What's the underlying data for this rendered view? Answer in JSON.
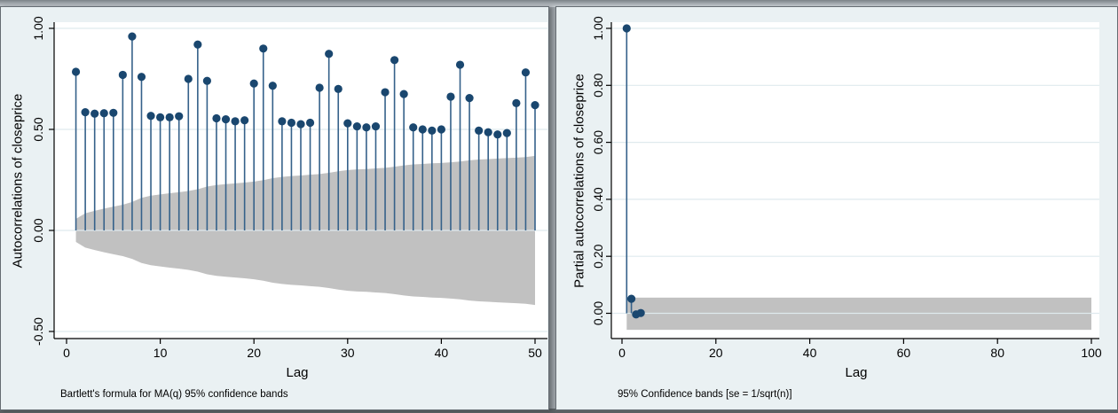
{
  "colors": {
    "panel_bg": "#eaf1f3",
    "plot_bg": "#ffffff",
    "grid": "#dfeaee",
    "axis": "#000000",
    "stem": "#35618a",
    "marker": "#1a476f",
    "band": "#c1c1c1",
    "window_border": "#656c72"
  },
  "chart_data": [
    {
      "type": "stem",
      "name": "autocorrelation-plot",
      "ylabel": "Autocorrelations of closeprice",
      "xlabel": "Lag",
      "note": "Bartlett's formula for MA(q) 95% confidence bands",
      "xlim": [
        0,
        50
      ],
      "ylim": [
        -0.55,
        1.03
      ],
      "xticks": [
        0,
        10,
        20,
        30,
        40,
        50
      ],
      "xtick_labels": [
        "0",
        "10",
        "20",
        "30",
        "40",
        "50"
      ],
      "yticks": [
        -0.5,
        0.0,
        0.5,
        1.0
      ],
      "ytick_labels": [
        "-0.50",
        "0.00",
        "0.50",
        "1.00"
      ],
      "grid": true,
      "lags": [
        1,
        2,
        3,
        4,
        5,
        6,
        7,
        8,
        9,
        10,
        11,
        12,
        13,
        14,
        15,
        16,
        17,
        18,
        19,
        20,
        21,
        22,
        23,
        24,
        25,
        26,
        27,
        28,
        29,
        30,
        31,
        32,
        33,
        34,
        35,
        36,
        37,
        38,
        39,
        40,
        41,
        42,
        43,
        44,
        45,
        46,
        47,
        48,
        49,
        50
      ],
      "values": [
        0.785,
        0.585,
        0.578,
        0.58,
        0.582,
        0.77,
        0.96,
        0.76,
        0.567,
        0.56,
        0.56,
        0.565,
        0.75,
        0.92,
        0.74,
        0.555,
        0.55,
        0.54,
        0.545,
        0.727,
        0.9,
        0.716,
        0.54,
        0.533,
        0.526,
        0.533,
        0.706,
        0.874,
        0.7,
        0.53,
        0.515,
        0.51,
        0.515,
        0.684,
        0.843,
        0.675,
        0.51,
        0.5,
        0.494,
        0.5,
        0.662,
        0.82,
        0.655,
        0.494,
        0.486,
        0.475,
        0.482,
        0.63,
        0.782,
        0.62
      ],
      "band_upper": [
        0.057,
        0.085,
        0.097,
        0.108,
        0.118,
        0.127,
        0.141,
        0.161,
        0.172,
        0.178,
        0.184,
        0.189,
        0.195,
        0.204,
        0.217,
        0.225,
        0.229,
        0.233,
        0.237,
        0.242,
        0.249,
        0.259,
        0.265,
        0.269,
        0.272,
        0.276,
        0.279,
        0.285,
        0.293,
        0.299,
        0.302,
        0.304,
        0.307,
        0.31,
        0.315,
        0.322,
        0.327,
        0.329,
        0.332,
        0.334,
        0.337,
        0.341,
        0.347,
        0.351,
        0.353,
        0.356,
        0.358,
        0.36,
        0.363,
        0.369
      ],
      "band_lower": [
        -0.057,
        -0.085,
        -0.097,
        -0.108,
        -0.118,
        -0.127,
        -0.141,
        -0.161,
        -0.172,
        -0.178,
        -0.184,
        -0.189,
        -0.195,
        -0.204,
        -0.217,
        -0.225,
        -0.229,
        -0.233,
        -0.237,
        -0.242,
        -0.249,
        -0.259,
        -0.265,
        -0.269,
        -0.272,
        -0.276,
        -0.279,
        -0.285,
        -0.293,
        -0.299,
        -0.302,
        -0.304,
        -0.307,
        -0.31,
        -0.315,
        -0.322,
        -0.327,
        -0.329,
        -0.332,
        -0.334,
        -0.337,
        -0.341,
        -0.347,
        -0.351,
        -0.353,
        -0.356,
        -0.358,
        -0.36,
        -0.363,
        -0.369
      ]
    },
    {
      "type": "stem",
      "name": "partial-autocorrelation-plot",
      "ylabel": "Partial autocorrelations of closeprice",
      "xlabel": "Lag",
      "note": "95% Confidence bands [se = 1/sqrt(n)]",
      "xlim": [
        0,
        100
      ],
      "ylim": [
        -0.09,
        1.03
      ],
      "xticks": [
        0,
        20,
        40,
        60,
        80,
        100
      ],
      "xtick_labels": [
        "0",
        "20",
        "40",
        "60",
        "80",
        "100"
      ],
      "yticks": [
        0.0,
        0.2,
        0.4,
        0.6,
        0.8,
        1.0
      ],
      "ytick_labels": [
        "0.00",
        "0.20",
        "0.40",
        "0.60",
        "0.80",
        "1.00"
      ],
      "grid": true,
      "lags": [
        1,
        2,
        3,
        4
      ],
      "values": [
        1.0,
        0.051,
        -0.004,
        0.001
      ],
      "band": {
        "start_lag": 1,
        "end_lag": 100,
        "upper": 0.055,
        "lower": -0.058
      }
    }
  ]
}
